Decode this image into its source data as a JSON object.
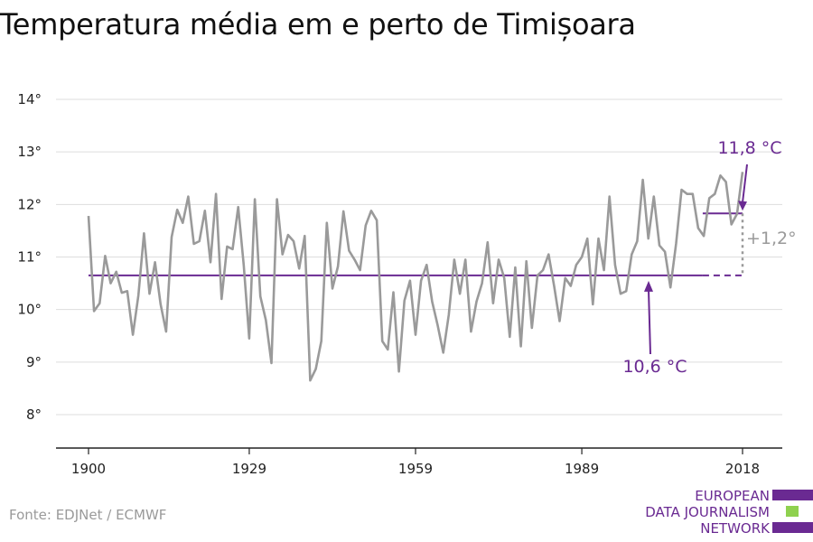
{
  "title": "Temperatura média em e perto de Timișoara",
  "source": "Fonte: EDJNet / ECMWF",
  "logo": {
    "lines": [
      "EUROPEAN",
      "DATA JOURNALISM",
      "NETWORK"
    ],
    "colors": {
      "purple": "#6a2a92",
      "green": "#8fd14f"
    }
  },
  "colors": {
    "series": "#9a9a9a",
    "mean_line": "#6a2a92",
    "grid": "#dddddd",
    "axis": "#222222"
  },
  "chart_data": {
    "type": "line",
    "title": "Temperatura média em e perto de Timișoara",
    "xlabel": "",
    "ylabel": "",
    "xlim": [
      1900,
      2018
    ],
    "ylim": [
      8,
      14
    ],
    "x_ticks": [
      1900,
      1929,
      1959,
      1989,
      2018
    ],
    "x_tick_labels": [
      "1900",
      "1929",
      "1959",
      "1989",
      "2018"
    ],
    "y_ticks": [
      8,
      9,
      10,
      11,
      12,
      13,
      14
    ],
    "y_tick_labels": [
      "8°",
      "9°",
      "10°",
      "11°",
      "12°",
      "13°",
      "14°"
    ],
    "grid": "horizontal",
    "series": [
      {
        "x": [
          1900,
          1901,
          1902,
          1903,
          1904,
          1905,
          1906,
          1907,
          1908,
          1909,
          1910,
          1911,
          1912,
          1913,
          1914,
          1915,
          1916,
          1917,
          1918,
          1919,
          1920,
          1921,
          1922,
          1923,
          1924,
          1925,
          1926,
          1927,
          1928,
          1929,
          1930,
          1931,
          1932,
          1933,
          1934,
          1935,
          1936,
          1937,
          1938,
          1939,
          1940,
          1941,
          1942,
          1943,
          1944,
          1945,
          1946,
          1947,
          1948,
          1949,
          1950,
          1951,
          1952,
          1953,
          1954,
          1955,
          1956,
          1957,
          1958,
          1959,
          1960,
          1961,
          1962,
          1963,
          1964,
          1965,
          1966,
          1967,
          1968,
          1969,
          1970,
          1971,
          1972,
          1973,
          1974,
          1975,
          1976,
          1977,
          1978,
          1979,
          1980,
          1981,
          1982,
          1983,
          1984,
          1985,
          1986,
          1987,
          1988,
          1989,
          1990,
          1991,
          1992,
          1993,
          1994,
          1995,
          1996,
          1997,
          1998,
          1999,
          2000,
          2001,
          2002,
          2003,
          2004,
          2005,
          2006,
          2007,
          2008,
          2009,
          2010,
          2011,
          2012,
          2013,
          2014,
          2015,
          2016,
          2017,
          2018
        ],
        "values": [
          11.78,
          9.97,
          10.12,
          11.02,
          10.5,
          10.72,
          10.32,
          10.35,
          9.52,
          10.27,
          11.45,
          10.3,
          10.9,
          10.1,
          9.58,
          11.38,
          11.9,
          11.65,
          12.15,
          11.25,
          11.3,
          11.88,
          10.9,
          12.2,
          10.2,
          11.2,
          11.15,
          11.95,
          10.85,
          9.45,
          12.1,
          10.25,
          9.8,
          8.98,
          12.1,
          11.05,
          11.42,
          11.3,
          10.78,
          11.4,
          8.65,
          8.87,
          9.4,
          11.65,
          10.4,
          10.82,
          11.87,
          11.12,
          10.95,
          10.75,
          11.6,
          11.88,
          11.7,
          9.4,
          9.24,
          10.33,
          8.82,
          10.17,
          10.55,
          9.52,
          10.55,
          10.85,
          10.15,
          9.7,
          9.18,
          9.9,
          10.95,
          10.3,
          10.95,
          9.58,
          10.15,
          10.5,
          11.28,
          10.12,
          10.95,
          10.6,
          9.48,
          10.8,
          9.3,
          10.92,
          9.65,
          10.65,
          10.75,
          11.05,
          10.45,
          9.78,
          10.6,
          10.45,
          10.85,
          11.0,
          11.35,
          10.1,
          11.35,
          10.75,
          12.15,
          10.85,
          10.3,
          10.35,
          11.05,
          11.3,
          12.47,
          11.35,
          12.15,
          11.22,
          11.1,
          10.42,
          11.25,
          12.28,
          12.2,
          12.2,
          11.55,
          11.4,
          12.12,
          12.2,
          12.55,
          12.43,
          11.62,
          11.82,
          12.62
        ]
      }
    ],
    "reference_lines": [
      {
        "label": "10,6 °C",
        "value": 10.65,
        "from": 1900,
        "to": 2018,
        "dashed_from": 2010
      },
      {
        "label": "11,8 °C",
        "value": 11.83,
        "from": 2010,
        "to": 2018
      }
    ],
    "annotations": {
      "difference": "+1,2°",
      "baseline": "10,6 °C",
      "recent": "11,8 °C"
    }
  }
}
